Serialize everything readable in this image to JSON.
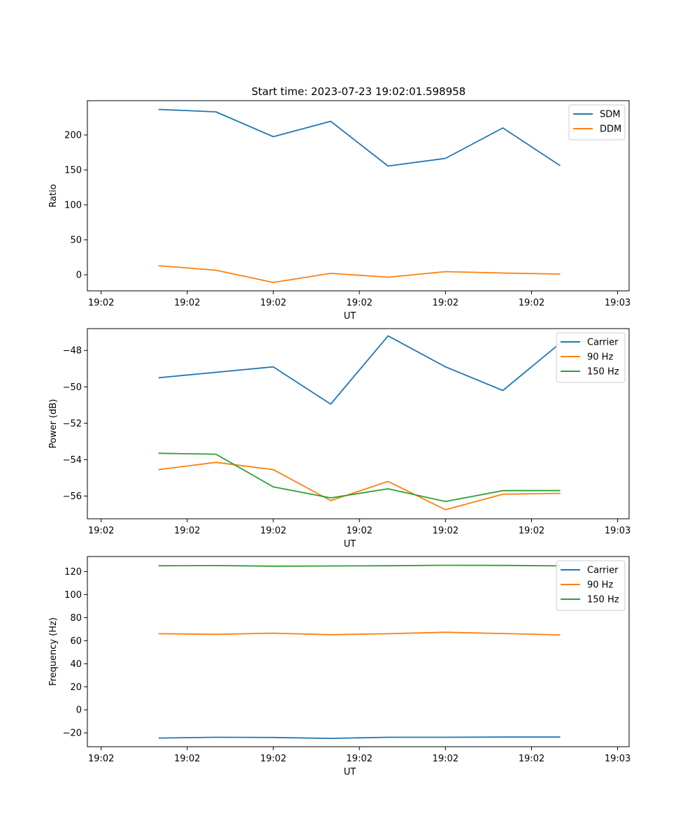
{
  "title": "Start time: 2023-07-23 19:02:01.598958",
  "chart_data": [
    {
      "type": "line",
      "xlabel": "UT",
      "ylabel": "Ratio",
      "x": [
        0.5,
        1.0,
        1.5,
        2.0,
        2.5,
        3.0,
        3.5,
        4.0
      ],
      "xlim": [
        -0.12,
        4.6
      ],
      "xticks": [
        0,
        0.75,
        1.5,
        2.25,
        3.0,
        3.75,
        4.5
      ],
      "xtick_labels": [
        "19:02",
        "19:02",
        "19:02",
        "19:02",
        "19:02",
        "19:02",
        "19:03"
      ],
      "ylim": [
        -23,
        249
      ],
      "yticks": [
        0,
        50,
        100,
        150,
        200
      ],
      "ytick_labels": [
        "0",
        "50",
        "100",
        "150",
        "200"
      ],
      "legend_position": "top-right",
      "series": [
        {
          "name": "SDM",
          "color": "#1f77b4",
          "values": [
            236.5,
            233,
            197.5,
            219.5,
            155.5,
            166.5,
            210,
            156
          ]
        },
        {
          "name": "DDM",
          "color": "#ff7f0e",
          "values": [
            13,
            6.5,
            -11,
            2,
            -3.5,
            4.5,
            2.5,
            1
          ]
        }
      ]
    },
    {
      "type": "line",
      "xlabel": "UT",
      "ylabel": "Power (dB)",
      "x": [
        0.5,
        1.0,
        1.5,
        2.0,
        2.5,
        3.0,
        3.5,
        4.0
      ],
      "xlim": [
        -0.12,
        4.6
      ],
      "xticks": [
        0,
        0.75,
        1.5,
        2.25,
        3.0,
        3.75,
        4.5
      ],
      "xtick_labels": [
        "19:02",
        "19:02",
        "19:02",
        "19:02",
        "19:02",
        "19:02",
        "19:03"
      ],
      "ylim": [
        -57.25,
        -46.8
      ],
      "yticks": [
        -56,
        -54,
        -52,
        -50,
        -48
      ],
      "ytick_labels": [
        "−56",
        "−54",
        "−52",
        "−50",
        "−48"
      ],
      "legend_position": "top-right",
      "series": [
        {
          "name": "Carrier",
          "color": "#1f77b4",
          "values": [
            -49.5,
            -49.2,
            -48.9,
            -50.95,
            -47.2,
            -48.9,
            -50.2,
            -47.6
          ]
        },
        {
          "name": "90 Hz",
          "color": "#ff7f0e",
          "values": [
            -54.55,
            -54.15,
            -54.55,
            -56.25,
            -55.2,
            -56.75,
            -55.9,
            -55.85
          ]
        },
        {
          "name": "150 Hz",
          "color": "#2ca02c",
          "values": [
            -53.65,
            -53.7,
            -55.5,
            -56.1,
            -55.6,
            -56.3,
            -55.7,
            -55.7
          ]
        }
      ]
    },
    {
      "type": "line",
      "xlabel": "UT",
      "ylabel": "Frequency (Hz)",
      "x": [
        0.5,
        1.0,
        1.5,
        2.0,
        2.5,
        3.0,
        3.5,
        4.0
      ],
      "xlim": [
        -0.12,
        4.6
      ],
      "xticks": [
        0,
        0.75,
        1.5,
        2.25,
        3.0,
        3.75,
        4.5
      ],
      "xtick_labels": [
        "19:02",
        "19:02",
        "19:02",
        "19:02",
        "19:02",
        "19:02",
        "19:03"
      ],
      "ylim": [
        -32,
        133
      ],
      "yticks": [
        -20,
        0,
        20,
        40,
        60,
        80,
        100,
        120
      ],
      "ytick_labels": [
        "−20",
        "0",
        "20",
        "40",
        "60",
        "80",
        "100",
        "120"
      ],
      "legend_position": "top-right",
      "series": [
        {
          "name": "Carrier",
          "color": "#1f77b4",
          "values": [
            -24.5,
            -23.8,
            -24,
            -24.8,
            -23.8,
            -23.8,
            -23.6,
            -23.6
          ]
        },
        {
          "name": "90 Hz",
          "color": "#ff7f0e",
          "values": [
            66,
            65.5,
            66.5,
            65.2,
            66,
            67.3,
            66.2,
            65
          ]
        },
        {
          "name": "150 Hz",
          "color": "#2ca02c",
          "values": [
            125,
            125.2,
            124.6,
            124.8,
            125,
            125.4,
            125.3,
            124.9
          ]
        }
      ]
    }
  ]
}
